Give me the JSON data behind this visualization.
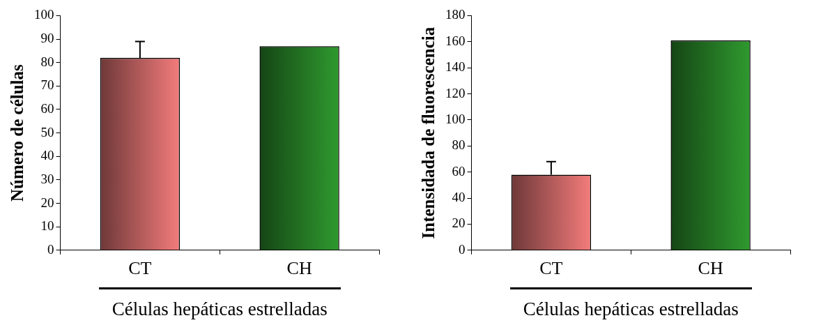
{
  "chart_data": [
    {
      "type": "bar",
      "ylabel": "Número de células",
      "xlabel": "Células hepáticas estrelladas",
      "categories": [
        "CT",
        "CH"
      ],
      "values": [
        82,
        87
      ],
      "colors": [
        "#f47c7c",
        "#2f9a2f"
      ],
      "errors": [
        [
          82,
          89
        ],
        null
      ],
      "ylim": [
        0,
        100
      ],
      "yticks": [
        0,
        10,
        20,
        30,
        40,
        50,
        60,
        70,
        80,
        90,
        100
      ]
    },
    {
      "type": "bar",
      "ylabel": "Intensidada de fluorescencia",
      "xlabel": "Células hepáticas estrelladas",
      "categories": [
        "CT",
        "CH"
      ],
      "values": [
        58,
        161
      ],
      "colors": [
        "#f47c7c",
        "#2f9a2f"
      ],
      "errors": [
        [
          58,
          68
        ],
        null
      ],
      "ylim": [
        0,
        180
      ],
      "yticks": [
        0,
        20,
        40,
        60,
        80,
        100,
        120,
        140,
        160,
        180
      ]
    }
  ]
}
